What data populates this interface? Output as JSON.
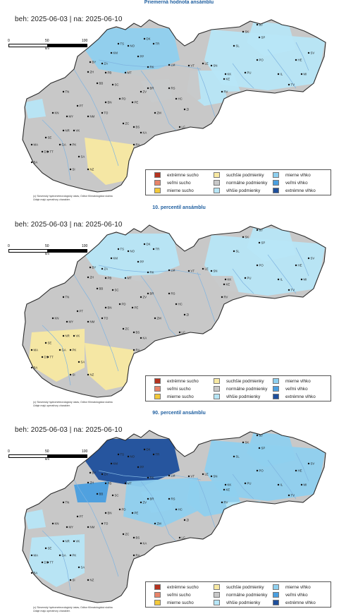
{
  "date_range": "beh: 2025-06-03 | na: 2025-06-10",
  "scale": {
    "ticks": [
      "0",
      "50",
      "100"
    ],
    "unit": "km"
  },
  "credit": [
    "(c) Slovenský hydrometeorologický ústav, Odbor Klimatologická služba",
    "Údaje majú operatívny charakter."
  ],
  "colors": {
    "extreme_dry": "#b5331f",
    "very_dry": "#e8846a",
    "mod_dry": "#f3c93a",
    "drier": "#f8e9a2",
    "normal": "#c8c8c8",
    "wetter": "#b7e6f7",
    "mod_wet": "#8fd0ef",
    "very_wet": "#4a9fe0",
    "extreme_wet": "#1e4f9c",
    "river": "#7fb4e0",
    "outline": "#2b2b2b"
  },
  "legend": [
    {
      "label": "extrémne sucho",
      "color": "#b5331f"
    },
    {
      "label": "veľmi sucho",
      "color": "#e8846a"
    },
    {
      "label": "mierne sucho",
      "color": "#f3c93a"
    },
    {
      "label": "suchšie podmienky",
      "color": "#f8e9a2"
    },
    {
      "label": "normálne podmienky",
      "color": "#c8c8c8"
    },
    {
      "label": "vlhšie podmienky",
      "color": "#b7e6f7"
    },
    {
      "label": "mierne vlhko",
      "color": "#8fd0ef"
    },
    {
      "label": "veľmi vlhko",
      "color": "#4a9fe0"
    },
    {
      "label": "extrémne vlhko",
      "color": "#1e4f9c"
    }
  ],
  "panels": [
    {
      "title": "Priemerná hodnota ansámblu"
    },
    {
      "title": "10. percentil ansámblu"
    },
    {
      "title": "90. percentil ansámblu"
    }
  ],
  "cities": [
    "KM",
    "TS",
    "NO",
    "TR",
    "DK",
    "PP",
    "SL",
    "SK",
    "SP",
    "BJ",
    "SV",
    "HE",
    "PO",
    "KK",
    "ZA",
    "BY",
    "ZH",
    "PB",
    "LM",
    "RK",
    "MT",
    "LE",
    "SN",
    "VT",
    "PU",
    "IL",
    "BB",
    "BR",
    "RS",
    "KE",
    "MI",
    "TV",
    "TN",
    "ZV",
    "RV",
    "BN",
    "PD",
    "PE",
    "ZM",
    "BS",
    "KA",
    "ZC",
    "NM",
    "TO",
    "MY",
    "VK",
    "LC",
    "RA",
    "NR",
    "GA",
    "SE",
    "PK",
    "TT",
    "SA",
    "NZ",
    "SI",
    "MA",
    "BA",
    "DS",
    "KN",
    "SC",
    "HC",
    "PT",
    "ZI"
  ]
}
